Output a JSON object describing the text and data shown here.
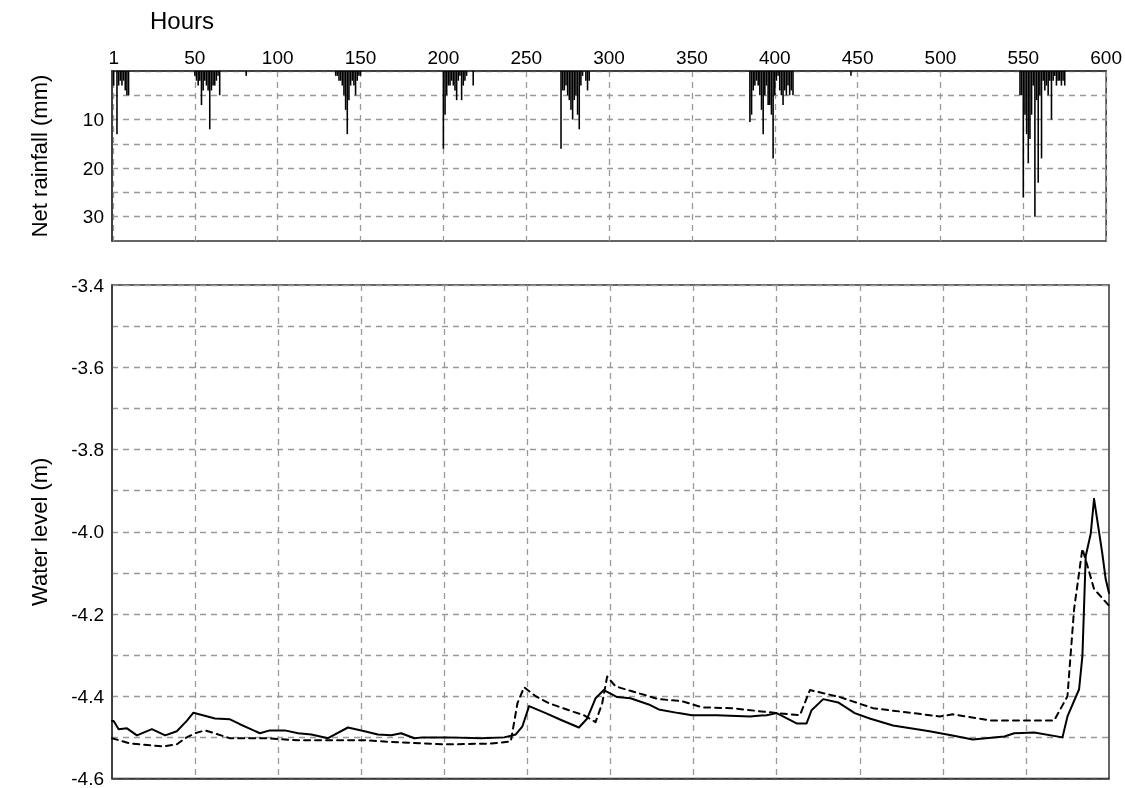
{
  "chart_data": [
    {
      "type": "bar",
      "xlabel": "Hours",
      "ylabel": "Net rainfall (mm)",
      "color": "#000000",
      "grid": true,
      "xlim": [
        0,
        600
      ],
      "xticks": [
        1,
        50,
        100,
        150,
        200,
        250,
        300,
        350,
        400,
        450,
        500,
        550,
        600
      ],
      "ylim": [
        35,
        0
      ],
      "yticks": [
        {
          "value": 0,
          "label": null
        },
        {
          "value": 5,
          "label": null
        },
        10,
        {
          "value": 15,
          "label": null
        },
        20,
        {
          "value": 25,
          "label": null
        },
        30
      ],
      "x": [
        1,
        2,
        3,
        4,
        5,
        6,
        7,
        8,
        9,
        10,
        50,
        51,
        52,
        53,
        54,
        55,
        56,
        57,
        58,
        59,
        60,
        61,
        62,
        63,
        64,
        65,
        81,
        135,
        136,
        137,
        138,
        139,
        140,
        141,
        142,
        143,
        144,
        145,
        146,
        147,
        148,
        149,
        150,
        200,
        201,
        202,
        203,
        204,
        205,
        206,
        207,
        208,
        209,
        210,
        211,
        212,
        213,
        214,
        218,
        271,
        272,
        273,
        274,
        275,
        276,
        277,
        278,
        279,
        280,
        281,
        282,
        283,
        284,
        286,
        287,
        288,
        385,
        386,
        387,
        388,
        389,
        390,
        391,
        392,
        393,
        394,
        395,
        396,
        397,
        398,
        399,
        400,
        401,
        402,
        403,
        404,
        405,
        406,
        407,
        408,
        409,
        410,
        411,
        446,
        548,
        549,
        550,
        551,
        552,
        553,
        554,
        555,
        556,
        557,
        558,
        559,
        560,
        561,
        562,
        563,
        564,
        565,
        566,
        567,
        568,
        569,
        570,
        571,
        572,
        573,
        574,
        575
      ],
      "values": [
        3,
        null,
        13,
        3,
        2,
        3,
        2,
        4,
        5,
        5,
        1,
        2,
        3,
        2,
        7,
        4,
        2,
        3,
        4,
        12,
        4,
        3,
        3,
        2,
        1,
        5,
        1,
        1,
        1,
        2,
        2,
        3,
        5,
        8,
        13,
        6,
        3,
        2,
        3,
        5,
        2,
        1,
        1,
        16,
        9,
        5,
        3,
        3,
        2,
        3,
        4,
        6,
        2,
        1,
        6,
        3,
        2,
        1,
        3,
        16,
        4,
        4,
        3,
        5,
        6,
        8,
        10,
        6,
        5,
        9,
        12,
        3,
        1,
        2,
        4,
        2,
        10.5,
        9,
        4,
        3,
        2,
        3,
        5,
        8,
        13,
        5,
        3,
        7,
        7,
        9,
        18,
        5,
        2,
        1,
        4,
        5,
        7,
        4,
        5,
        3,
        5,
        4,
        5,
        1,
        5,
        5,
        26,
        9,
        13,
        19,
        14,
        9,
        3,
        30,
        6,
        23,
        5,
        18,
        2,
        4,
        3,
        5,
        2,
        10,
        2,
        1,
        3,
        2,
        2,
        3,
        2,
        3
      ]
    },
    {
      "type": "line",
      "ylabel": "Water level (m)",
      "grid": true,
      "tick_labels": "y",
      "xlim": [
        0,
        600
      ],
      "xticks": [
        {
          "value": 50,
          "label": null
        },
        {
          "value": 100,
          "label": null
        },
        {
          "value": 150,
          "label": null
        },
        {
          "value": 200,
          "label": null
        },
        {
          "value": 250,
          "label": null
        },
        {
          "value": 300,
          "label": null
        },
        {
          "value": 350,
          "label": null
        },
        {
          "value": 400,
          "label": null
        },
        {
          "value": 450,
          "label": null
        },
        {
          "value": 500,
          "label": null
        },
        {
          "value": 550,
          "label": null
        }
      ],
      "ylim": [
        -4.6,
        -3.4
      ],
      "yticks": [
        -4.6,
        {
          "value": -4.5,
          "label": null
        },
        -4.4,
        {
          "value": -4.3,
          "label": null
        },
        -4.2,
        {
          "value": -4.1,
          "label": null
        },
        {
          "value": -4,
          "label": "-4.0"
        },
        {
          "value": -3.9,
          "label": null
        },
        -3.8,
        {
          "value": -3.7,
          "label": null
        },
        -3.6,
        {
          "value": -3.5,
          "label": null
        },
        -3.4
      ],
      "series": [
        {
          "color": "#000000",
          "line_style": "solid",
          "x": [
            0,
            1,
            4,
            9,
            15,
            24,
            32,
            39,
            45,
            49,
            62,
            71,
            77,
            89,
            95,
            104,
            112,
            120,
            130,
            142,
            152,
            160,
            168,
            174,
            182,
            187,
            202,
            222,
            236,
            243,
            247,
            251,
            261,
            271,
            281,
            286,
            291,
            296,
            304,
            312,
            323,
            329,
            341,
            349,
            364,
            384,
            394,
            400,
            412,
            418,
            421,
            428,
            437,
            447,
            456,
            470,
            492,
            505,
            518,
            537,
            543,
            555,
            572,
            575,
            582,
            584,
            586,
            589,
            591,
            596,
            598,
            600
          ],
          "values": [
            -4.46,
            -4.46,
            -4.48,
            -4.478,
            -4.495,
            -4.48,
            -4.495,
            -4.485,
            -4.46,
            -4.44,
            -4.454,
            -4.456,
            -4.468,
            -4.49,
            -4.483,
            -4.483,
            -4.49,
            -4.493,
            -4.502,
            -4.476,
            -4.485,
            -4.493,
            -4.495,
            -4.49,
            -4.502,
            -4.5,
            -4.5,
            -4.502,
            -4.5,
            -4.493,
            -4.473,
            -4.424,
            -4.441,
            -4.459,
            -4.476,
            -4.454,
            -4.405,
            -4.385,
            -4.402,
            -4.405,
            -4.42,
            -4.432,
            -4.441,
            -4.446,
            -4.446,
            -4.449,
            -4.446,
            -4.441,
            -4.466,
            -4.466,
            -4.434,
            -4.407,
            -4.415,
            -4.441,
            -4.454,
            -4.471,
            -4.485,
            -4.495,
            -4.505,
            -4.498,
            -4.49,
            -4.488,
            -4.5,
            -4.449,
            -4.383,
            -4.302,
            -4.059,
            -4.005,
            -3.92,
            -4.054,
            -4.115,
            -4.149
          ]
        },
        {
          "color": "#000000",
          "line_style": "dashed",
          "x": [
            0,
            11,
            31,
            39,
            44,
            50,
            56,
            71,
            92,
            112,
            152,
            172,
            202,
            228,
            240,
            244,
            248,
            255,
            263,
            277,
            284,
            291,
            295,
            298,
            303,
            313,
            329,
            343,
            355,
            373,
            400,
            414,
            420,
            438,
            458,
            498,
            506,
            529,
            567,
            575,
            579,
            584,
            587,
            591,
            600
          ],
          "values": [
            -4.502,
            -4.515,
            -4.522,
            -4.517,
            -4.502,
            -4.49,
            -4.483,
            -4.502,
            -4.502,
            -4.507,
            -4.507,
            -4.512,
            -4.517,
            -4.515,
            -4.51,
            -4.417,
            -4.378,
            -4.4,
            -4.417,
            -4.437,
            -4.446,
            -4.463,
            -4.417,
            -4.352,
            -4.376,
            -4.388,
            -4.407,
            -4.412,
            -4.427,
            -4.429,
            -4.441,
            -4.446,
            -4.385,
            -4.402,
            -4.429,
            -4.449,
            -4.444,
            -4.459,
            -4.459,
            -4.4,
            -4.188,
            -4.041,
            -4.083,
            -4.139,
            -4.18
          ]
        }
      ]
    }
  ]
}
